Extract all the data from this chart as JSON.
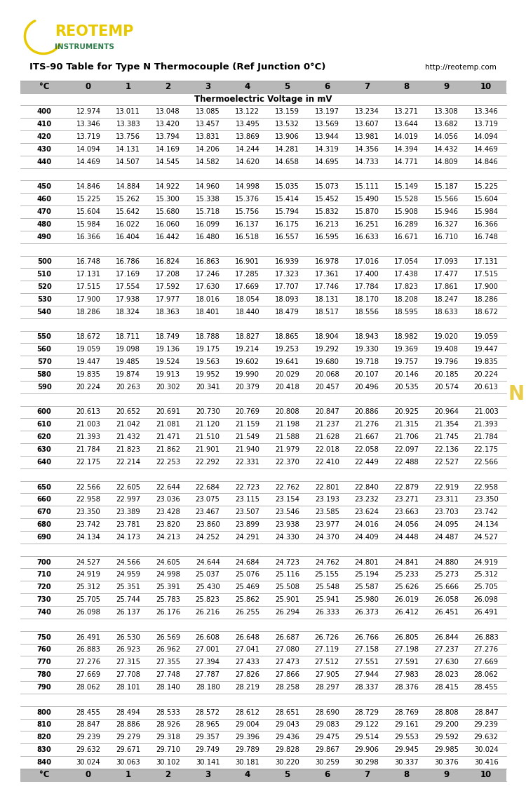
{
  "title": "ITS-90 Table for Type N Thermocouple (Ref Junction 0°C)",
  "url": "http://reotemp.com",
  "subtitle": "Thermoelectric Voltage in mV",
  "col_headers": [
    "°C",
    "0",
    "1",
    "2",
    "3",
    "4",
    "5",
    "6",
    "7",
    "8",
    "9",
    "10"
  ],
  "rows": [
    [
      400,
      12.974,
      13.011,
      13.048,
      13.085,
      13.122,
      13.159,
      13.197,
      13.234,
      13.271,
      13.308,
      13.346
    ],
    [
      410,
      13.346,
      13.383,
      13.42,
      13.457,
      13.495,
      13.532,
      13.569,
      13.607,
      13.644,
      13.682,
      13.719
    ],
    [
      420,
      13.719,
      13.756,
      13.794,
      13.831,
      13.869,
      13.906,
      13.944,
      13.981,
      14.019,
      14.056,
      14.094
    ],
    [
      430,
      14.094,
      14.131,
      14.169,
      14.206,
      14.244,
      14.281,
      14.319,
      14.356,
      14.394,
      14.432,
      14.469
    ],
    [
      440,
      14.469,
      14.507,
      14.545,
      14.582,
      14.62,
      14.658,
      14.695,
      14.733,
      14.771,
      14.809,
      14.846
    ],
    [
      null,
      null,
      null,
      null,
      null,
      null,
      null,
      null,
      null,
      null,
      null,
      null
    ],
    [
      450,
      14.846,
      14.884,
      14.922,
      14.96,
      14.998,
      15.035,
      15.073,
      15.111,
      15.149,
      15.187,
      15.225
    ],
    [
      460,
      15.225,
      15.262,
      15.3,
      15.338,
      15.376,
      15.414,
      15.452,
      15.49,
      15.528,
      15.566,
      15.604
    ],
    [
      470,
      15.604,
      15.642,
      15.68,
      15.718,
      15.756,
      15.794,
      15.832,
      15.87,
      15.908,
      15.946,
      15.984
    ],
    [
      480,
      15.984,
      16.022,
      16.06,
      16.099,
      16.137,
      16.175,
      16.213,
      16.251,
      16.289,
      16.327,
      16.366
    ],
    [
      490,
      16.366,
      16.404,
      16.442,
      16.48,
      16.518,
      16.557,
      16.595,
      16.633,
      16.671,
      16.71,
      16.748
    ],
    [
      null,
      null,
      null,
      null,
      null,
      null,
      null,
      null,
      null,
      null,
      null,
      null
    ],
    [
      500,
      16.748,
      16.786,
      16.824,
      16.863,
      16.901,
      16.939,
      16.978,
      17.016,
      17.054,
      17.093,
      17.131
    ],
    [
      510,
      17.131,
      17.169,
      17.208,
      17.246,
      17.285,
      17.323,
      17.361,
      17.4,
      17.438,
      17.477,
      17.515
    ],
    [
      520,
      17.515,
      17.554,
      17.592,
      17.63,
      17.669,
      17.707,
      17.746,
      17.784,
      17.823,
      17.861,
      17.9
    ],
    [
      530,
      17.9,
      17.938,
      17.977,
      18.016,
      18.054,
      18.093,
      18.131,
      18.17,
      18.208,
      18.247,
      18.286
    ],
    [
      540,
      18.286,
      18.324,
      18.363,
      18.401,
      18.44,
      18.479,
      18.517,
      18.556,
      18.595,
      18.633,
      18.672
    ],
    [
      null,
      null,
      null,
      null,
      null,
      null,
      null,
      null,
      null,
      null,
      null,
      null
    ],
    [
      550,
      18.672,
      18.711,
      18.749,
      18.788,
      18.827,
      18.865,
      18.904,
      18.943,
      18.982,
      19.02,
      19.059
    ],
    [
      560,
      19.059,
      19.098,
      19.136,
      19.175,
      19.214,
      19.253,
      19.292,
      19.33,
      19.369,
      19.408,
      19.447
    ],
    [
      570,
      19.447,
      19.485,
      19.524,
      19.563,
      19.602,
      19.641,
      19.68,
      19.718,
      19.757,
      19.796,
      19.835
    ],
    [
      580,
      19.835,
      19.874,
      19.913,
      19.952,
      19.99,
      20.029,
      20.068,
      20.107,
      20.146,
      20.185,
      20.224
    ],
    [
      590,
      20.224,
      20.263,
      20.302,
      20.341,
      20.379,
      20.418,
      20.457,
      20.496,
      20.535,
      20.574,
      20.613
    ],
    [
      null,
      null,
      null,
      null,
      null,
      null,
      null,
      null,
      null,
      null,
      null,
      null
    ],
    [
      600,
      20.613,
      20.652,
      20.691,
      20.73,
      20.769,
      20.808,
      20.847,
      20.886,
      20.925,
      20.964,
      21.003
    ],
    [
      610,
      21.003,
      21.042,
      21.081,
      21.12,
      21.159,
      21.198,
      21.237,
      21.276,
      21.315,
      21.354,
      21.393
    ],
    [
      620,
      21.393,
      21.432,
      21.471,
      21.51,
      21.549,
      21.588,
      21.628,
      21.667,
      21.706,
      21.745,
      21.784
    ],
    [
      630,
      21.784,
      21.823,
      21.862,
      21.901,
      21.94,
      21.979,
      22.018,
      22.058,
      22.097,
      22.136,
      22.175
    ],
    [
      640,
      22.175,
      22.214,
      22.253,
      22.292,
      22.331,
      22.37,
      22.41,
      22.449,
      22.488,
      22.527,
      22.566
    ],
    [
      null,
      null,
      null,
      null,
      null,
      null,
      null,
      null,
      null,
      null,
      null,
      null
    ],
    [
      650,
      22.566,
      22.605,
      22.644,
      22.684,
      22.723,
      22.762,
      22.801,
      22.84,
      22.879,
      22.919,
      22.958
    ],
    [
      660,
      22.958,
      22.997,
      23.036,
      23.075,
      23.115,
      23.154,
      23.193,
      23.232,
      23.271,
      23.311,
      23.35
    ],
    [
      670,
      23.35,
      23.389,
      23.428,
      23.467,
      23.507,
      23.546,
      23.585,
      23.624,
      23.663,
      23.703,
      23.742
    ],
    [
      680,
      23.742,
      23.781,
      23.82,
      23.86,
      23.899,
      23.938,
      23.977,
      24.016,
      24.056,
      24.095,
      24.134
    ],
    [
      690,
      24.134,
      24.173,
      24.213,
      24.252,
      24.291,
      24.33,
      24.37,
      24.409,
      24.448,
      24.487,
      24.527
    ],
    [
      null,
      null,
      null,
      null,
      null,
      null,
      null,
      null,
      null,
      null,
      null,
      null
    ],
    [
      700,
      24.527,
      24.566,
      24.605,
      24.644,
      24.684,
      24.723,
      24.762,
      24.801,
      24.841,
      24.88,
      24.919
    ],
    [
      710,
      24.919,
      24.959,
      24.998,
      25.037,
      25.076,
      25.116,
      25.155,
      25.194,
      25.233,
      25.273,
      25.312
    ],
    [
      720,
      25.312,
      25.351,
      25.391,
      25.43,
      25.469,
      25.508,
      25.548,
      25.587,
      25.626,
      25.666,
      25.705
    ],
    [
      730,
      25.705,
      25.744,
      25.783,
      25.823,
      25.862,
      25.901,
      25.941,
      25.98,
      26.019,
      26.058,
      26.098
    ],
    [
      740,
      26.098,
      26.137,
      26.176,
      26.216,
      26.255,
      26.294,
      26.333,
      26.373,
      26.412,
      26.451,
      26.491
    ],
    [
      null,
      null,
      null,
      null,
      null,
      null,
      null,
      null,
      null,
      null,
      null,
      null
    ],
    [
      750,
      26.491,
      26.53,
      26.569,
      26.608,
      26.648,
      26.687,
      26.726,
      26.766,
      26.805,
      26.844,
      26.883
    ],
    [
      760,
      26.883,
      26.923,
      26.962,
      27.001,
      27.041,
      27.08,
      27.119,
      27.158,
      27.198,
      27.237,
      27.276
    ],
    [
      770,
      27.276,
      27.315,
      27.355,
      27.394,
      27.433,
      27.473,
      27.512,
      27.551,
      27.591,
      27.63,
      27.669
    ],
    [
      780,
      27.669,
      27.708,
      27.748,
      27.787,
      27.826,
      27.866,
      27.905,
      27.944,
      27.983,
      28.023,
      28.062
    ],
    [
      790,
      28.062,
      28.101,
      28.14,
      28.18,
      28.219,
      28.258,
      28.297,
      28.337,
      28.376,
      28.415,
      28.455
    ],
    [
      null,
      null,
      null,
      null,
      null,
      null,
      null,
      null,
      null,
      null,
      null,
      null
    ],
    [
      800,
      28.455,
      28.494,
      28.533,
      28.572,
      28.612,
      28.651,
      28.69,
      28.729,
      28.769,
      28.808,
      28.847
    ],
    [
      810,
      28.847,
      28.886,
      28.926,
      28.965,
      29.004,
      29.043,
      29.083,
      29.122,
      29.161,
      29.2,
      29.239
    ],
    [
      820,
      29.239,
      29.279,
      29.318,
      29.357,
      29.396,
      29.436,
      29.475,
      29.514,
      29.553,
      29.592,
      29.632
    ],
    [
      830,
      29.632,
      29.671,
      29.71,
      29.749,
      29.789,
      29.828,
      29.867,
      29.906,
      29.945,
      29.985,
      30.024
    ],
    [
      840,
      30.024,
      30.063,
      30.102,
      30.141,
      30.181,
      30.22,
      30.259,
      30.298,
      30.337,
      30.376,
      30.416
    ]
  ],
  "header_bg": "#b8b8b8",
  "side_bar_green": "#3d8b6e",
  "side_bar_yellow": "#e8cc4a",
  "logo_yellow": "#e8c800",
  "logo_green": "#2a7a4a",
  "font_size_data": 7.2,
  "font_size_header": 8.5,
  "font_size_title": 9.5,
  "font_size_subtitle": 8.5
}
